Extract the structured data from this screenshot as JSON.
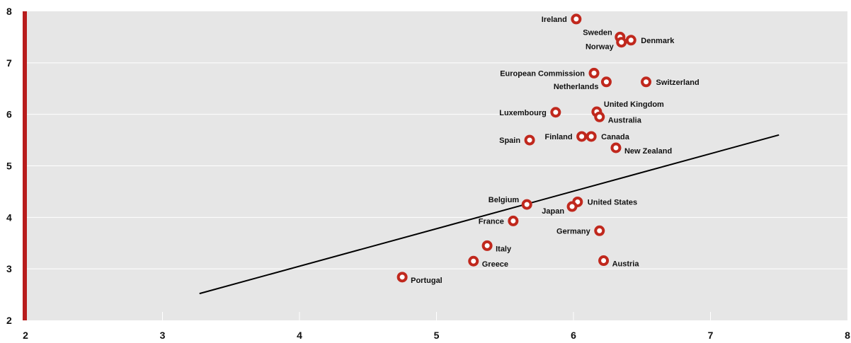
{
  "chart_data": {
    "type": "scatter",
    "title": "",
    "xlabel": "",
    "ylabel": "",
    "xlim": [
      2,
      8
    ],
    "ylim": [
      2,
      8
    ],
    "xticks": [
      "2",
      "3",
      "4",
      "5",
      "6",
      "7",
      "8"
    ],
    "yticks": [
      "2",
      "3",
      "4",
      "5",
      "6",
      "7",
      "8"
    ],
    "grid": "horizontal",
    "colors": {
      "background": "#e6e6e6",
      "point": "#c0281d",
      "axis_bar": "#b81c1c",
      "trend": "#000000",
      "gridline": "#ffffff"
    },
    "points": [
      {
        "label": "Ireland",
        "x": 6.02,
        "y": 7.85,
        "anchor": "left"
      },
      {
        "label": "Sweden",
        "x": 6.34,
        "y": 7.5,
        "anchor": "left-up"
      },
      {
        "label": "Denmark",
        "x": 6.42,
        "y": 7.44,
        "anchor": "right"
      },
      {
        "label": "Norway",
        "x": 6.35,
        "y": 7.4,
        "anchor": "left-down"
      },
      {
        "label": "European Commission",
        "x": 6.15,
        "y": 6.8,
        "anchor": "left"
      },
      {
        "label": "Netherlands",
        "x": 6.24,
        "y": 6.63,
        "anchor": "left-down"
      },
      {
        "label": "Switzerland",
        "x": 6.53,
        "y": 6.63,
        "anchor": "right"
      },
      {
        "label": "United Kingdom",
        "x": 6.17,
        "y": 6.05,
        "anchor": "right-up"
      },
      {
        "label": "Luxembourg",
        "x": 5.87,
        "y": 6.04,
        "anchor": "left"
      },
      {
        "label": "Australia",
        "x": 6.19,
        "y": 5.95,
        "anchor": "right-down"
      },
      {
        "label": "Finland",
        "x": 6.06,
        "y": 5.57,
        "anchor": "left"
      },
      {
        "label": "Canada",
        "x": 6.13,
        "y": 5.57,
        "anchor": "right"
      },
      {
        "label": "Spain",
        "x": 5.68,
        "y": 5.5,
        "anchor": "left"
      },
      {
        "label": "New Zealand",
        "x": 6.31,
        "y": 5.35,
        "anchor": "right-down"
      },
      {
        "label": "United States",
        "x": 6.03,
        "y": 4.3,
        "anchor": "right"
      },
      {
        "label": "Belgium",
        "x": 5.66,
        "y": 4.25,
        "anchor": "left-up"
      },
      {
        "label": "Japan",
        "x": 5.99,
        "y": 4.21,
        "anchor": "left-down"
      },
      {
        "label": "France",
        "x": 5.56,
        "y": 3.93,
        "anchor": "left"
      },
      {
        "label": "Germany",
        "x": 6.19,
        "y": 3.74,
        "anchor": "left"
      },
      {
        "label": "Italy",
        "x": 5.37,
        "y": 3.45,
        "anchor": "right-down"
      },
      {
        "label": "Greece",
        "x": 5.27,
        "y": 3.15,
        "anchor": "right-down"
      },
      {
        "label": "Austria",
        "x": 6.22,
        "y": 3.16,
        "anchor": "right-down"
      },
      {
        "label": "Portugal",
        "x": 4.75,
        "y": 2.84,
        "anchor": "right-down"
      }
    ],
    "trend_line": {
      "x": [
        3.27,
        7.5
      ],
      "y": [
        2.52,
        5.6
      ]
    }
  }
}
